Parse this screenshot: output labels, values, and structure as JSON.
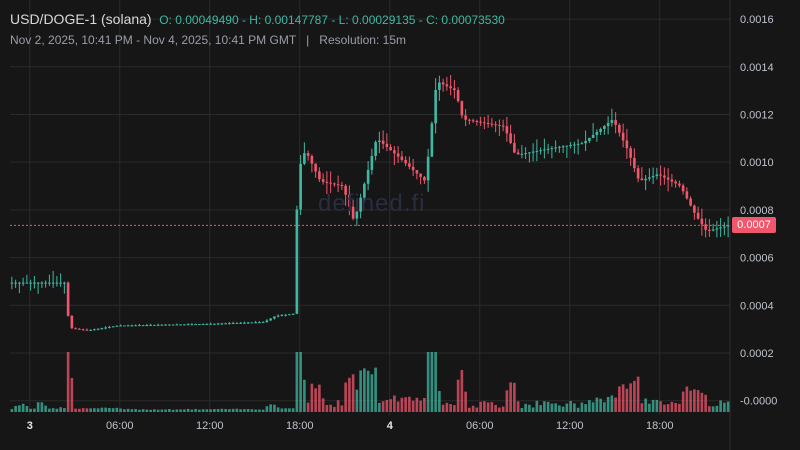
{
  "header": {
    "pair": "USD/DOGE-1 (solana)",
    "ohlc": "O: 0.00049490 - H: 0.00147787 - L: 0.00029135 - C: 0.00073530",
    "range": "Nov 2, 2025, 10:41 PM - Nov 4, 2025, 10:41 PM GMT",
    "separator": "|",
    "resolution": "Resolution: 15m"
  },
  "watermark": "defined.fi",
  "colors": {
    "up": "#3fb8a3",
    "down": "#f0566c",
    "background": "#161616",
    "grid": "#2a2a2a"
  },
  "chart_data": {
    "type": "candlestick",
    "title": "",
    "xlabel": "",
    "ylabel": "",
    "x_range": [
      "2025-11-02 22:41",
      "2025-11-04 22:41"
    ],
    "ylim": [
      -6e-05,
      0.00168
    ],
    "y_ticks": [
      {
        "value": 0.0016,
        "label": "0.0016"
      },
      {
        "value": 0.0014,
        "label": "0.0014"
      },
      {
        "value": 0.0012,
        "label": "0.0012"
      },
      {
        "value": 0.001,
        "label": "0.0010"
      },
      {
        "value": 0.0008,
        "label": "0.0008"
      },
      {
        "value": 0.0006,
        "label": "0.0006"
      },
      {
        "value": 0.0004,
        "label": "0.0004"
      },
      {
        "value": 0.0002,
        "label": "0.0002"
      },
      {
        "value": 0.0,
        "label": "-0.0000"
      }
    ],
    "x_ticks": [
      {
        "time": "2025-11-03 00:00",
        "label": "3",
        "bold": true
      },
      {
        "time": "2025-11-03 06:00",
        "label": "06:00",
        "bold": false
      },
      {
        "time": "2025-11-03 12:00",
        "label": "12:00",
        "bold": false
      },
      {
        "time": "2025-11-03 18:00",
        "label": "18:00",
        "bold": false
      },
      {
        "time": "2025-11-04 00:00",
        "label": "4",
        "bold": true
      },
      {
        "time": "2025-11-04 06:00",
        "label": "06:00",
        "bold": false
      },
      {
        "time": "2025-11-04 12:00",
        "label": "12:00",
        "bold": false
      },
      {
        "time": "2025-11-04 18:00",
        "label": "18:00",
        "bold": false
      }
    ],
    "last_price": 0.0007353,
    "last_price_label": "0.0007",
    "key_points": [
      {
        "time": "2025-11-02 22:41",
        "price": 0.000495
      },
      {
        "time": "2025-11-03 02:30",
        "price": 0.000495
      },
      {
        "time": "2025-11-03 02:45",
        "price": 0.000305
      },
      {
        "time": "2025-11-03 04:00",
        "price": 0.000295
      },
      {
        "time": "2025-11-03 06:00",
        "price": 0.000315
      },
      {
        "time": "2025-11-03 12:00",
        "price": 0.000322
      },
      {
        "time": "2025-11-03 15:45",
        "price": 0.00033
      },
      {
        "time": "2025-11-03 16:30",
        "price": 0.000355
      },
      {
        "time": "2025-11-03 17:45",
        "price": 0.000365
      },
      {
        "time": "2025-11-03 18:00",
        "price": 0.00096
      },
      {
        "time": "2025-11-03 18:30",
        "price": 0.00105
      },
      {
        "time": "2025-11-03 19:30",
        "price": 0.00092
      },
      {
        "time": "2025-11-03 21:00",
        "price": 0.0009
      },
      {
        "time": "2025-11-03 21:45",
        "price": 0.00075
      },
      {
        "time": "2025-11-03 23:15",
        "price": 0.0011
      },
      {
        "time": "2025-11-04 00:45",
        "price": 0.00102
      },
      {
        "time": "2025-11-04 02:30",
        "price": 0.00092
      },
      {
        "time": "2025-11-04 03:15",
        "price": 0.00134
      },
      {
        "time": "2025-11-04 04:30",
        "price": 0.0013
      },
      {
        "time": "2025-11-04 05:00",
        "price": 0.00118
      },
      {
        "time": "2025-11-04 07:45",
        "price": 0.00115
      },
      {
        "time": "2025-11-04 08:30",
        "price": 0.00103
      },
      {
        "time": "2025-11-04 11:00",
        "price": 0.00106
      },
      {
        "time": "2025-11-04 13:00",
        "price": 0.00108
      },
      {
        "time": "2025-11-04 15:00",
        "price": 0.00118
      },
      {
        "time": "2025-11-04 16:00",
        "price": 0.00105
      },
      {
        "time": "2025-11-04 16:45",
        "price": 0.00092
      },
      {
        "time": "2025-11-04 18:00",
        "price": 0.00095
      },
      {
        "time": "2025-11-04 19:30",
        "price": 0.0009
      },
      {
        "time": "2025-11-04 20:30",
        "price": 0.00078
      },
      {
        "time": "2025-11-04 21:15",
        "price": 0.00071
      },
      {
        "time": "2025-11-04 22:41",
        "price": 0.000735
      }
    ]
  }
}
